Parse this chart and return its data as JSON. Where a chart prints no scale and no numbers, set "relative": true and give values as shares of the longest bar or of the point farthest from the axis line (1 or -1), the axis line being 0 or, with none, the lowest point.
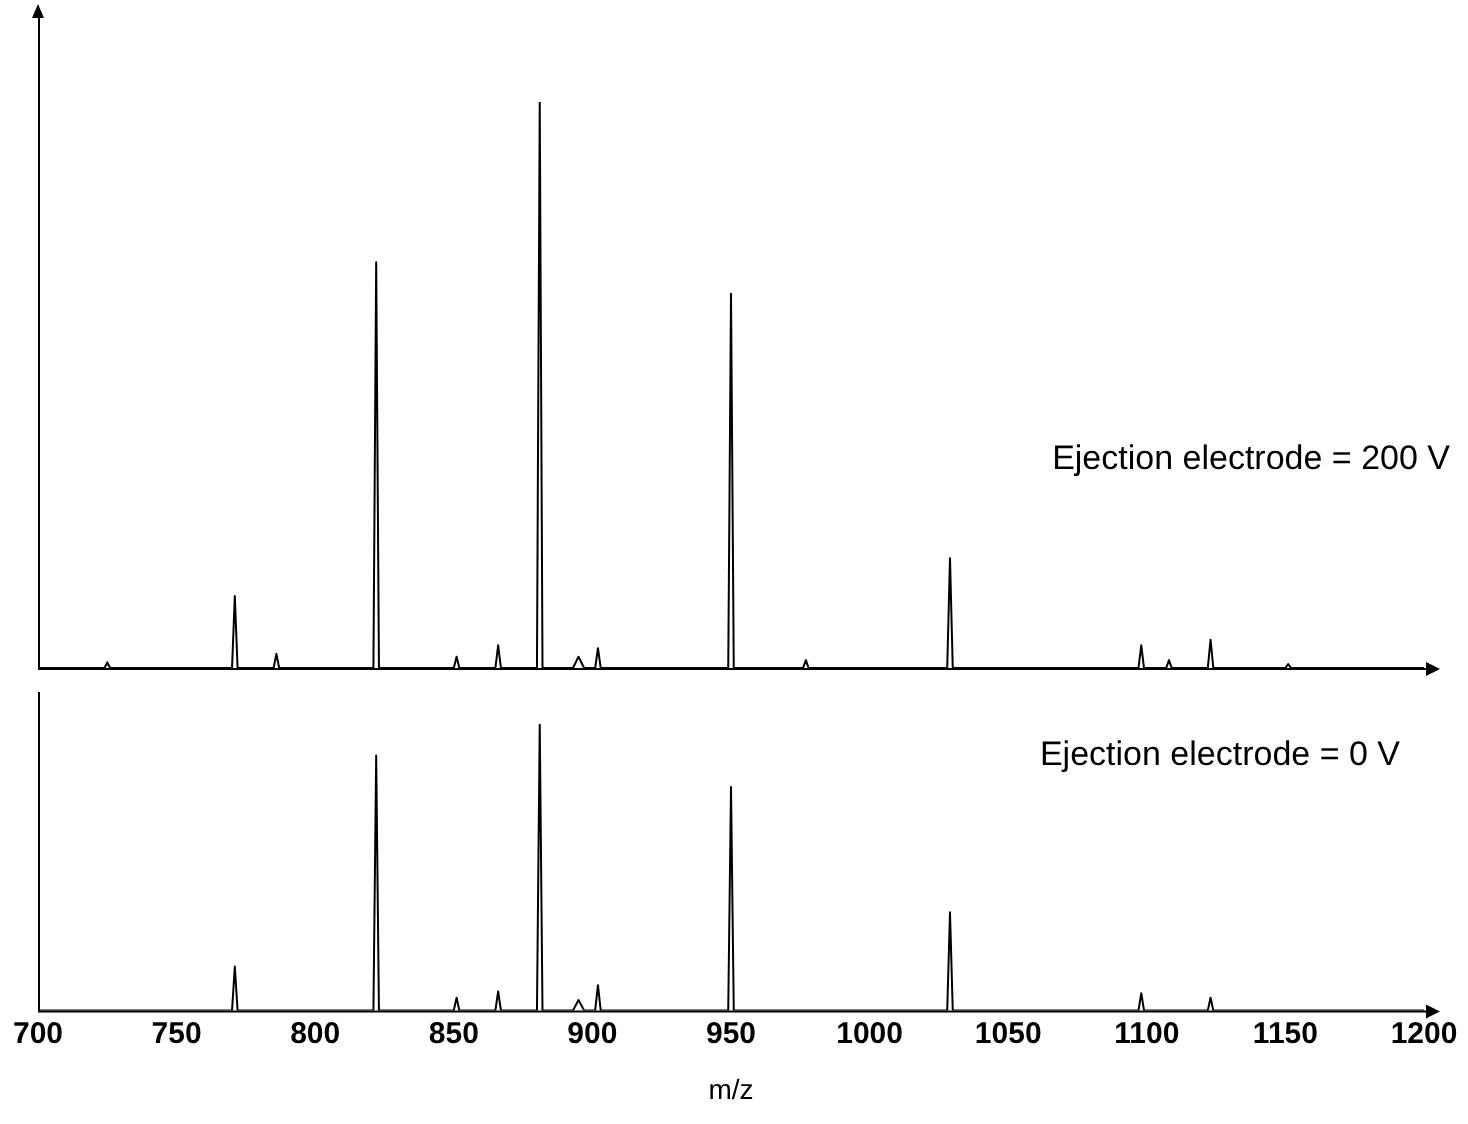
{
  "chart_data": [
    {
      "type": "line",
      "relative": true,
      "xlim": [
        700,
        1200
      ],
      "xticks": [
        700,
        750,
        800,
        850,
        900,
        950,
        1000,
        1050,
        1100,
        1150,
        1200
      ],
      "tick_labels": false,
      "marker": "none",
      "annotations": [
        "Ejection electrode = 200 V"
      ],
      "series": [
        {
          "color": "#000000",
          "x": [
            700,
            724,
            725,
            726,
            770,
            771,
            772,
            785,
            786,
            787,
            821,
            822,
            823,
            850,
            851,
            852,
            865,
            866,
            867,
            880,
            881,
            882,
            893,
            895,
            897,
            901,
            902,
            903,
            949,
            950,
            951,
            976,
            977,
            978,
            1028,
            1029,
            1030,
            1097,
            1098,
            1099,
            1107,
            1108,
            1109,
            1122,
            1123,
            1124,
            1150,
            1151,
            1152,
            1200
          ],
          "values": [
            0,
            0,
            0.01,
            0,
            0,
            0.127,
            0,
            0,
            0.025,
            0,
            0,
            0.717,
            0,
            0,
            0.02,
            0,
            0,
            0.04,
            0,
            0,
            1,
            0,
            0,
            0.02,
            0,
            0,
            0.035,
            0,
            0,
            0.661,
            0,
            0,
            0.014,
            0,
            0,
            0.194,
            0,
            0,
            0.04,
            0,
            0,
            0.014,
            0,
            0,
            0.05,
            0,
            0,
            0.007,
            0,
            0
          ]
        }
      ]
    },
    {
      "type": "line",
      "relative": true,
      "xlim": [
        700,
        1200
      ],
      "xticks": [
        700,
        750,
        800,
        850,
        900,
        950,
        1000,
        1050,
        1100,
        1150,
        1200
      ],
      "tick_labels": "x",
      "xlabel": "m/z",
      "marker": "none",
      "annotations": [
        "Ejection electrode = 0 V"
      ],
      "series": [
        {
          "color": "#000000",
          "x": [
            700,
            770,
            771,
            772,
            821,
            822,
            823,
            850,
            851,
            852,
            865,
            866,
            867,
            880,
            881,
            882,
            893,
            895,
            897,
            901,
            902,
            903,
            949,
            950,
            951,
            1028,
            1029,
            1030,
            1097,
            1098,
            1099,
            1122,
            1123,
            1124,
            1200
          ],
          "values": [
            0,
            0,
            0.153,
            0,
            0,
            0.89,
            0,
            0,
            0.044,
            0,
            0,
            0.066,
            0,
            0,
            1,
            0,
            0,
            0.036,
            0,
            0,
            0.088,
            0,
            0,
            0.78,
            0,
            0,
            0.343,
            0,
            0,
            0.06,
            0,
            0,
            0.044,
            0,
            0
          ]
        }
      ]
    }
  ]
}
